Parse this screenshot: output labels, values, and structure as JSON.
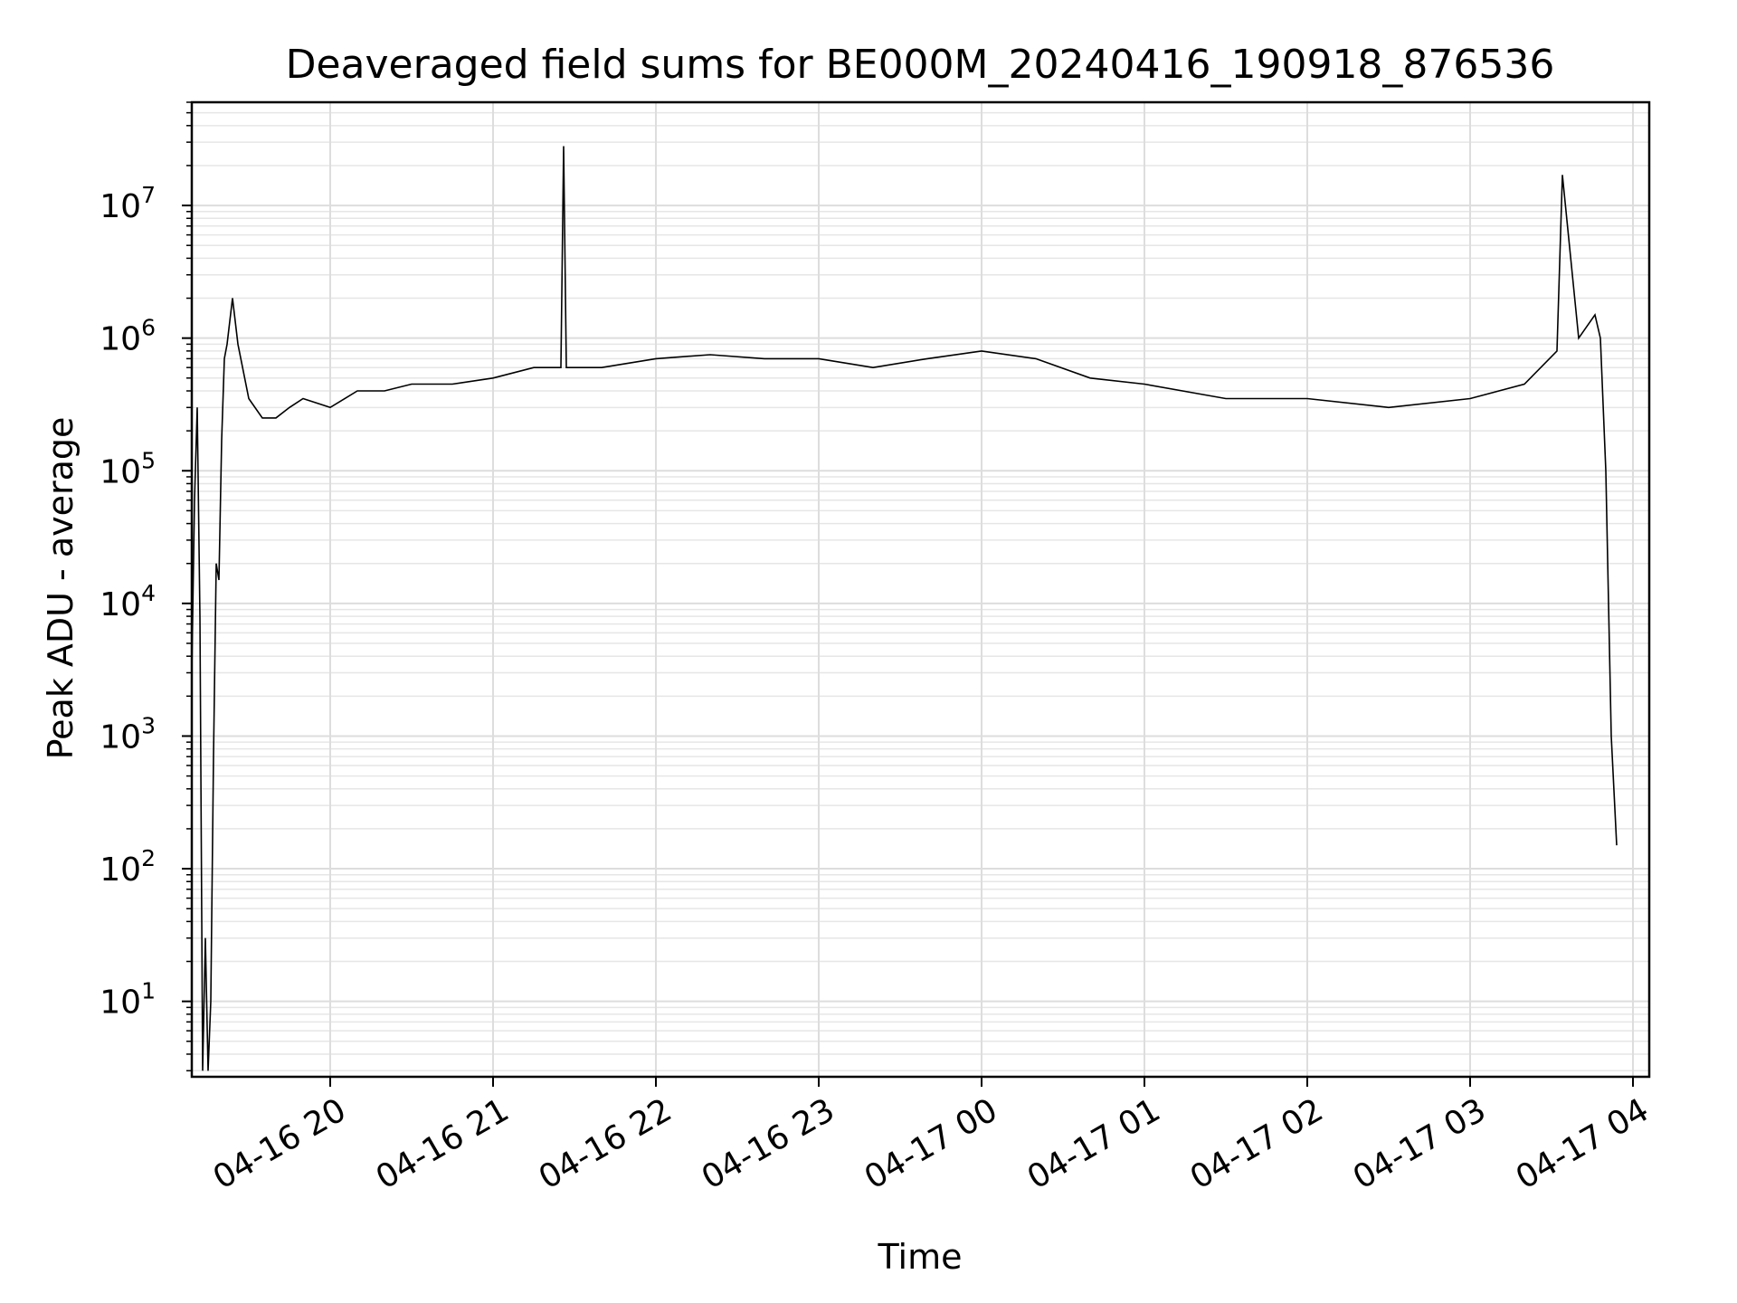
{
  "chart_data": {
    "type": "line",
    "title": "Deaveraged field sums for BE000M_20240416_190918_876536",
    "xlabel": "Time",
    "ylabel": "Peak ADU - average",
    "yscale": "log",
    "ylim": [
      2.7,
      60000000
    ],
    "xlim": [
      "2024-04-16 19:09",
      "2024-04-17 04:06"
    ],
    "grid": true,
    "series_color": "#000000",
    "x_ticks": [
      "04-16 20",
      "04-16 21",
      "04-16 22",
      "04-16 23",
      "04-17 00",
      "04-17 01",
      "04-17 02",
      "04-17 03",
      "04-17 04"
    ],
    "y_ticks": [
      {
        "base": "10",
        "exp": "1",
        "value": 10
      },
      {
        "base": "10",
        "exp": "2",
        "value": 100
      },
      {
        "base": "10",
        "exp": "3",
        "value": 1000
      },
      {
        "base": "10",
        "exp": "4",
        "value": 10000
      },
      {
        "base": "10",
        "exp": "5",
        "value": 100000
      },
      {
        "base": "10",
        "exp": "6",
        "value": 1000000
      },
      {
        "base": "10",
        "exp": "7",
        "value": 10000000
      }
    ],
    "series": [
      {
        "x": [
          "2024-04-16 19:09",
          "2024-04-16 19:10",
          "2024-04-16 19:11",
          "2024-04-16 19:12",
          "2024-04-16 19:13",
          "2024-04-16 19:14",
          "2024-04-16 19:15",
          "2024-04-16 19:16",
          "2024-04-16 19:17",
          "2024-04-16 19:18",
          "2024-04-16 19:19",
          "2024-04-16 19:20",
          "2024-04-16 19:21",
          "2024-04-16 19:22",
          "2024-04-16 19:24",
          "2024-04-16 19:26",
          "2024-04-16 19:30",
          "2024-04-16 19:35",
          "2024-04-16 19:40",
          "2024-04-16 19:45",
          "2024-04-16 19:50",
          "2024-04-16 20:00",
          "2024-04-16 20:10",
          "2024-04-16 20:20",
          "2024-04-16 20:30",
          "2024-04-16 20:45",
          "2024-04-16 21:00",
          "2024-04-16 21:15",
          "2024-04-16 21:25",
          "2024-04-16 21:26",
          "2024-04-16 21:27",
          "2024-04-16 21:40",
          "2024-04-16 22:00",
          "2024-04-16 22:20",
          "2024-04-16 22:40",
          "2024-04-16 23:00",
          "2024-04-16 23:20",
          "2024-04-16 23:40",
          "2024-04-17 00:00",
          "2024-04-17 00:20",
          "2024-04-17 00:40",
          "2024-04-17 01:00",
          "2024-04-17 01:30",
          "2024-04-17 02:00",
          "2024-04-17 02:30",
          "2024-04-17 03:00",
          "2024-04-17 03:20",
          "2024-04-17 03:32",
          "2024-04-17 03:34",
          "2024-04-17 03:40",
          "2024-04-17 03:46",
          "2024-04-17 03:48",
          "2024-04-17 03:50",
          "2024-04-17 03:52",
          "2024-04-17 03:54"
        ],
        "values": [
          3000,
          60000,
          300000,
          8000,
          3,
          30,
          3,
          10,
          700,
          20000,
          15000,
          170000,
          700000,
          900000,
          2000000,
          900000,
          350000,
          250000,
          250000,
          300000,
          350000,
          300000,
          400000,
          400000,
          450000,
          450000,
          500000,
          600000,
          600000,
          28000000,
          600000,
          600000,
          700000,
          750000,
          700000,
          700000,
          600000,
          700000,
          800000,
          700000,
          500000,
          450000,
          350000,
          350000,
          300000,
          350000,
          450000,
          800000,
          17000000,
          1000000,
          1500000,
          1000000,
          100000,
          1000,
          150
        ]
      }
    ]
  }
}
